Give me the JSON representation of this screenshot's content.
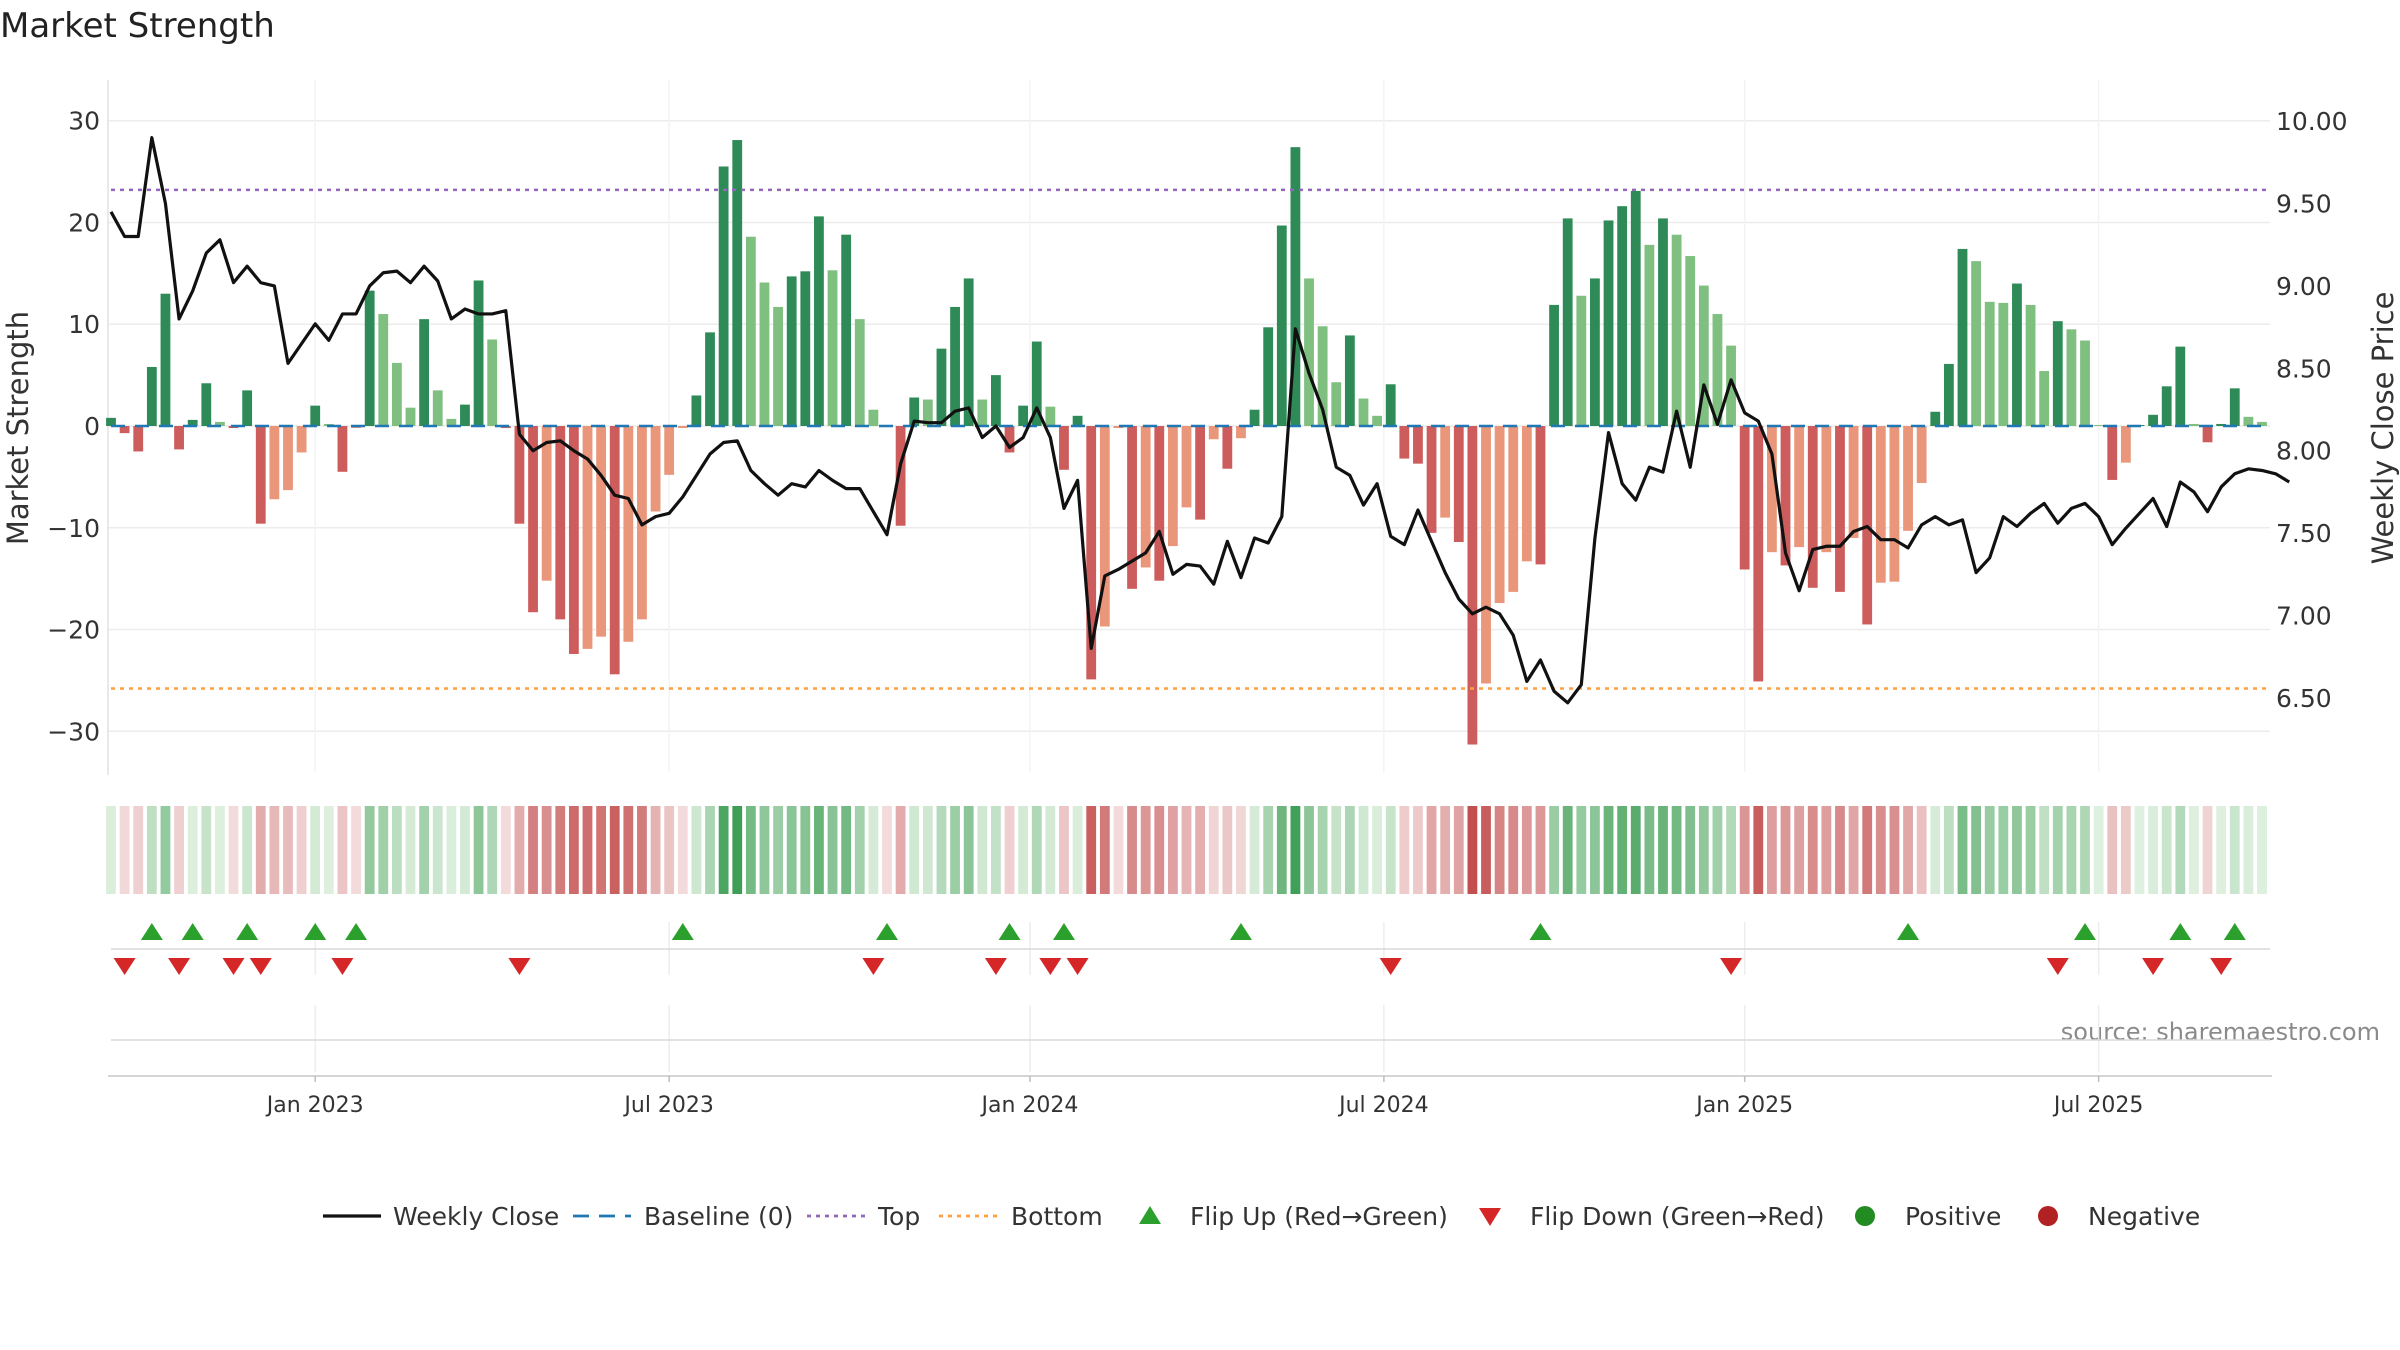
{
  "chart_data": {
    "type": "bar",
    "title": "Market Strength",
    "ylabel": "Market Strength",
    "y2label": "Weekly Close Price",
    "ylim": [
      -34,
      34
    ],
    "y2lim": [
      6.05,
      10.25
    ],
    "yticks": [
      "30",
      "20",
      "10",
      "0",
      "−10",
      "−20",
      "−30"
    ],
    "yticks_values": [
      30,
      20,
      10,
      0,
      -10,
      -20,
      -30
    ],
    "y2ticks": [
      "10.00",
      "9.50",
      "9.00",
      "8.50",
      "8.00",
      "7.50",
      "7.00",
      "6.50"
    ],
    "y2ticks_values": [
      10,
      9.5,
      9,
      8.5,
      8,
      7.5,
      7,
      6.5
    ],
    "xticks": [
      "Jan 2023",
      "Jul 2023",
      "Jan 2024",
      "Jul 2024",
      "Jan 2025",
      "Jul 2025"
    ],
    "xticks_index": [
      15,
      41,
      67.5,
      93.5,
      120,
      146
    ],
    "top_level": 23.2,
    "bottom_level": -25.8,
    "grid": true,
    "legend_position": "bottom",
    "legend": [
      "Weekly Close",
      "Baseline (0)",
      "Top",
      "Bottom",
      "Flip Up (Red→Green)",
      "Flip Down (Green→Red)",
      "Positive",
      "Negative"
    ],
    "source": "source: sharemaestro.com",
    "colors": {
      "strong_green": "#2e8b57",
      "light_green": "#7fbf7f",
      "strong_red": "#cd5c5c",
      "light_red": "#e9967a",
      "close_line": "#111111",
      "baseline": "#1f77b4",
      "top": "#9467bd",
      "bottom": "#ff9f40",
      "flip_up": "#2ca02c",
      "flip_down": "#d62728",
      "positive": "#228b22",
      "negative": "#b22222"
    },
    "strength": [
      0.8,
      -0.7,
      -2.5,
      5.8,
      13,
      -2.3,
      0.6,
      4.2,
      0.4,
      -0.2,
      3.5,
      -9.6,
      -7.2,
      -6.3,
      -2.6,
      2,
      0.2,
      -4.5,
      -0.2,
      13.3,
      11,
      6.2,
      1.8,
      10.5,
      3.5,
      0.7,
      2.1,
      14.3,
      8.5,
      -0.2,
      -9.6,
      -18.3,
      -15.2,
      -19,
      -22.4,
      -21.9,
      -20.7,
      -24.4,
      -21.2,
      -19,
      -8.4,
      -4.8,
      -0.2,
      3,
      9.2,
      25.5,
      28.1,
      18.6,
      14.1,
      11.7,
      14.7,
      15.2,
      20.6,
      15.3,
      18.8,
      10.5,
      1.6,
      -0.1,
      -9.8,
      2.8,
      2.6,
      7.6,
      11.7,
      14.5,
      2.6,
      5,
      -2.6,
      2,
      8.3,
      1.9,
      -4.3,
      1,
      -24.9,
      -19.7,
      -0.2,
      -16,
      -13.9,
      -15.2,
      -11.8,
      -8,
      -9.2,
      -1.3,
      -4.2,
      -1.2,
      1.6,
      9.7,
      19.7,
      27.4,
      14.5,
      9.8,
      4.3,
      8.9,
      2.7,
      1,
      4.1,
      -3.2,
      -3.7,
      -10.5,
      -9,
      -11.4,
      -31.3,
      -25.3,
      -17.4,
      -16.3,
      -13.3,
      -13.6,
      11.9,
      20.4,
      12.8,
      14.5,
      20.2,
      21.6,
      23.1,
      17.8,
      20.4,
      18.8,
      16.7,
      13.8,
      11,
      7.9,
      -14.1,
      -25.1,
      -12.4,
      -13.7,
      -11.9,
      -15.9,
      -12.4,
      -16.3,
      -11,
      -19.5,
      -15.4,
      -15.3,
      -10.3,
      -5.6,
      1.4,
      6.1,
      17.4,
      16.2,
      12.2,
      12.1,
      14,
      11.9,
      5.4,
      10.3,
      9.5,
      8.4,
      0.1,
      -5.3,
      -3.6,
      0.1,
      1.1,
      3.9,
      7.8,
      0.2,
      -1.6,
      0.2,
      3.7,
      0.9,
      0.4
    ],
    "weekly_close": [
      9.45,
      9.3,
      9.3,
      9.9,
      9.5,
      8.8,
      8.97,
      9.2,
      9.28,
      9.02,
      9.12,
      9.02,
      9,
      8.53,
      8.65,
      8.77,
      8.67,
      8.83,
      8.83,
      9,
      9.08,
      9.09,
      9.02,
      9.12,
      9.03,
      8.8,
      8.86,
      8.83,
      8.83,
      8.85,
      8.1,
      8,
      8.05,
      8.06,
      8,
      7.95,
      7.85,
      7.73,
      7.71,
      7.55,
      7.6,
      7.62,
      7.72,
      7.85,
      7.98,
      8.05,
      8.06,
      7.88,
      7.8,
      7.73,
      7.8,
      7.78,
      7.88,
      7.82,
      7.77,
      7.77,
      7.63,
      7.49,
      7.92,
      8.18,
      8.17,
      8.17,
      8.24,
      8.26,
      8.08,
      8.15,
      8.02,
      8.08,
      8.26,
      8.08,
      7.65,
      7.82,
      6.8,
      7.24,
      7.28,
      7.33,
      7.38,
      7.51,
      7.25,
      7.31,
      7.3,
      7.19,
      7.45,
      7.23,
      7.47,
      7.44,
      7.6,
      8.74,
      8.47,
      8.25,
      7.9,
      7.85,
      7.67,
      7.8,
      7.48,
      7.43,
      7.64,
      7.45,
      7.26,
      7.1,
      7.01,
      7.05,
      7.01,
      6.88,
      6.6,
      6.73,
      6.54,
      6.47,
      6.58,
      7.47,
      8.11,
      7.8,
      7.7,
      7.9,
      7.87,
      8.24,
      7.9,
      8.4,
      8.16,
      8.43,
      8.23,
      8.18,
      7.98,
      7.38,
      7.15,
      7.4,
      7.42,
      7.42,
      7.51,
      7.54,
      7.46,
      7.46,
      7.41,
      7.55,
      7.6,
      7.55,
      7.58,
      7.26,
      7.35,
      7.6,
      7.54,
      7.62,
      7.68,
      7.56,
      7.65,
      7.68,
      7.6,
      7.43,
      7.53,
      7.62,
      7.71,
      7.54,
      7.81,
      7.75,
      7.63,
      7.78,
      7.86,
      7.89,
      7.88,
      7.86,
      7.81
    ],
    "flip_up_index": [
      3,
      6,
      10,
      15,
      18,
      42,
      57,
      66,
      70,
      83,
      105,
      132,
      145,
      152,
      156
    ],
    "flip_down_index": [
      1,
      5,
      9,
      11,
      17,
      30,
      56,
      65,
      69,
      71,
      94,
      119,
      143,
      150,
      155
    ]
  }
}
